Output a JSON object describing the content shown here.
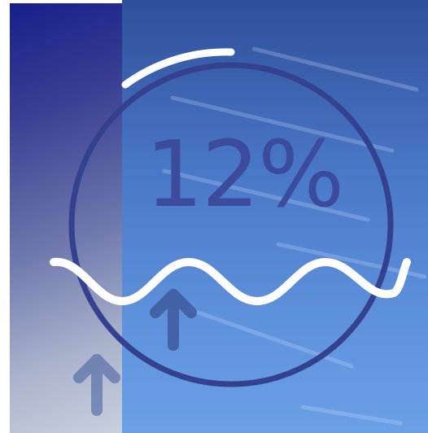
{
  "gauge": {
    "value_text": "12%",
    "fraction": 0.12
  },
  "colors": {
    "ring": "#33418f",
    "wave": "#ffffff",
    "arrow": "#3f5a9e",
    "sidebar_top": "#16208a",
    "sidebar_bottom": "#c7d0de"
  },
  "icons": {
    "rising_arrow_large": "arrow-up-icon",
    "rising_arrow_small": "arrow-up-icon",
    "wave": "wave-icon",
    "progress_arc": "progress-arc"
  }
}
